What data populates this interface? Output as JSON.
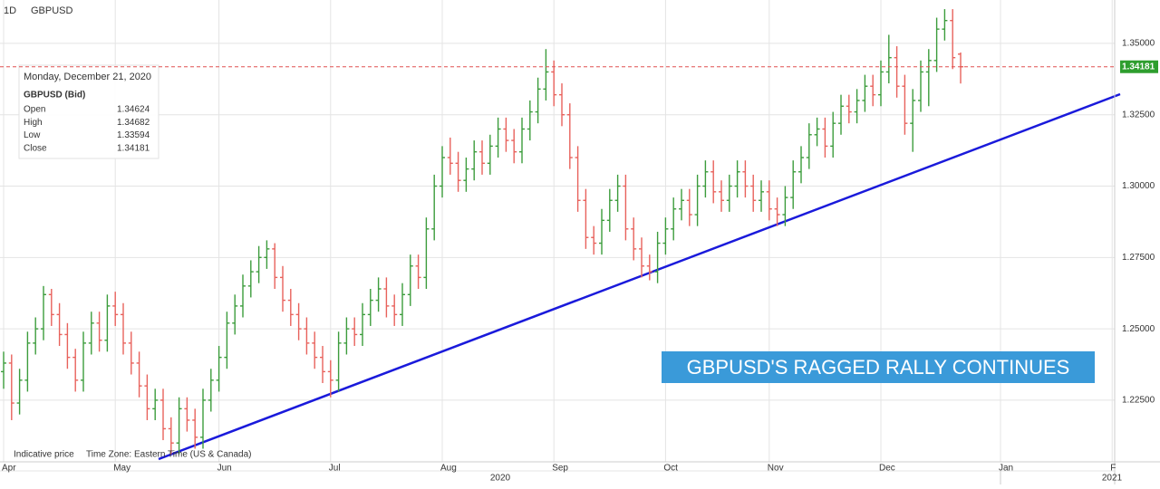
{
  "header": {
    "interval": "1D",
    "symbol": "GBPUSD"
  },
  "footer": {
    "note": "Indicative price",
    "timezone": "Time Zone: Eastern Time (US & Canada)"
  },
  "tooltip": {
    "date": "Monday, December 21, 2020",
    "symbol": "GBPUSD (Bid)",
    "rows": [
      [
        "Open",
        1.34624
      ],
      [
        "High",
        1.34682
      ],
      [
        "Low",
        1.33594
      ],
      [
        "Close",
        1.34181
      ]
    ]
  },
  "chart_data": {
    "type": "ohlc",
    "annotation": "GBPUSD'S RAGGED RALLY CONTINUES",
    "last_label": "1.34181",
    "up_color": "#3c9c3c",
    "down_color": "#e8625c",
    "grid": true,
    "ylim": [
      1.2034,
      1.3652
    ],
    "yticks": [
      {
        "value": 1.225,
        "label": "1.22500"
      },
      {
        "value": 1.25,
        "label": "1.25000"
      },
      {
        "value": 1.275,
        "label": "1.27500"
      },
      {
        "value": 1.3,
        "label": "1.30000"
      },
      {
        "value": 1.325,
        "label": "1.32500"
      },
      {
        "value": 1.35,
        "label": "1.35000"
      }
    ],
    "xticks": [
      {
        "value": 0,
        "label": "Apr"
      },
      {
        "value": 14,
        "label": "May"
      },
      {
        "value": 27,
        "label": "Jun"
      },
      {
        "value": 41,
        "label": "Jul"
      },
      {
        "value": 55,
        "label": "Aug"
      },
      {
        "value": 69,
        "label": "Sep"
      },
      {
        "value": 83,
        "label": "Oct"
      },
      {
        "value": 96,
        "label": "Nov"
      },
      {
        "value": 110,
        "label": "Dec"
      },
      {
        "value": 125,
        "label": "Jan"
      },
      {
        "value": 139,
        "label": "F"
      }
    ],
    "years": [
      "2020",
      "2021"
    ],
    "bars": [
      [
        1.235,
        1.242,
        1.229,
        1.238
      ],
      [
        1.238,
        1.241,
        1.218,
        1.224
      ],
      [
        1.224,
        1.236,
        1.22,
        1.232
      ],
      [
        1.232,
        1.249,
        1.228,
        1.245
      ],
      [
        1.245,
        1.254,
        1.241,
        1.25
      ],
      [
        1.25,
        1.265,
        1.246,
        1.262
      ],
      [
        1.262,
        1.264,
        1.251,
        1.255
      ],
      [
        1.255,
        1.259,
        1.244,
        1.248
      ],
      [
        1.248,
        1.252,
        1.236,
        1.24
      ],
      [
        1.24,
        1.243,
        1.228,
        1.232
      ],
      [
        1.232,
        1.249,
        1.228,
        1.245
      ],
      [
        1.245,
        1.256,
        1.241,
        1.252
      ],
      [
        1.252,
        1.256,
        1.242,
        1.246
      ],
      [
        1.246,
        1.262,
        1.242,
        1.258
      ],
      [
        1.258,
        1.263,
        1.251,
        1.255
      ],
      [
        1.255,
        1.259,
        1.241,
        1.245
      ],
      [
        1.245,
        1.249,
        1.234,
        1.238
      ],
      [
        1.238,
        1.242,
        1.226,
        1.23
      ],
      [
        1.23,
        1.234,
        1.218,
        1.222
      ],
      [
        1.222,
        1.229,
        1.218,
        1.225
      ],
      [
        1.225,
        1.229,
        1.211,
        1.215
      ],
      [
        1.215,
        1.219,
        1.206,
        1.21
      ],
      [
        1.21,
        1.226,
        1.206,
        1.222
      ],
      [
        1.222,
        1.226,
        1.214,
        1.218
      ],
      [
        1.218,
        1.222,
        1.208,
        1.212
      ],
      [
        1.212,
        1.229,
        1.208,
        1.225
      ],
      [
        1.225,
        1.236,
        1.221,
        1.232
      ],
      [
        1.232,
        1.244,
        1.228,
        1.24
      ],
      [
        1.24,
        1.256,
        1.236,
        1.252
      ],
      [
        1.252,
        1.262,
        1.248,
        1.258
      ],
      [
        1.258,
        1.269,
        1.254,
        1.265
      ],
      [
        1.265,
        1.274,
        1.261,
        1.27
      ],
      [
        1.27,
        1.279,
        1.266,
        1.275
      ],
      [
        1.275,
        1.281,
        1.271,
        1.278
      ],
      [
        1.278,
        1.28,
        1.264,
        1.268
      ],
      [
        1.268,
        1.272,
        1.256,
        1.26
      ],
      [
        1.26,
        1.264,
        1.251,
        1.255
      ],
      [
        1.255,
        1.259,
        1.246,
        1.25
      ],
      [
        1.25,
        1.254,
        1.241,
        1.245
      ],
      [
        1.245,
        1.249,
        1.236,
        1.24
      ],
      [
        1.24,
        1.244,
        1.231,
        1.235
      ],
      [
        1.235,
        1.239,
        1.226,
        1.232
      ],
      [
        1.232,
        1.249,
        1.228,
        1.245
      ],
      [
        1.245,
        1.254,
        1.241,
        1.25
      ],
      [
        1.25,
        1.254,
        1.244,
        1.248
      ],
      [
        1.248,
        1.259,
        1.244,
        1.255
      ],
      [
        1.255,
        1.264,
        1.251,
        1.26
      ],
      [
        1.26,
        1.268,
        1.256,
        1.264
      ],
      [
        1.264,
        1.268,
        1.254,
        1.258
      ],
      [
        1.258,
        1.262,
        1.251,
        1.255
      ],
      [
        1.255,
        1.266,
        1.251,
        1.262
      ],
      [
        1.262,
        1.276,
        1.258,
        1.272
      ],
      [
        1.272,
        1.276,
        1.264,
        1.268
      ],
      [
        1.268,
        1.289,
        1.264,
        1.285
      ],
      [
        1.285,
        1.304,
        1.281,
        1.3
      ],
      [
        1.3,
        1.314,
        1.296,
        1.31
      ],
      [
        1.31,
        1.317,
        1.304,
        1.308
      ],
      [
        1.308,
        1.312,
        1.298,
        1.302
      ],
      [
        1.302,
        1.31,
        1.298,
        1.306
      ],
      [
        1.306,
        1.316,
        1.302,
        1.312
      ],
      [
        1.312,
        1.316,
        1.304,
        1.308
      ],
      [
        1.308,
        1.318,
        1.304,
        1.314
      ],
      [
        1.314,
        1.324,
        1.31,
        1.32
      ],
      [
        1.32,
        1.324,
        1.312,
        1.316
      ],
      [
        1.316,
        1.32,
        1.308,
        1.312
      ],
      [
        1.312,
        1.324,
        1.308,
        1.32
      ],
      [
        1.32,
        1.33,
        1.316,
        1.326
      ],
      [
        1.326,
        1.338,
        1.322,
        1.334
      ],
      [
        1.334,
        1.348,
        1.33,
        1.34
      ],
      [
        1.34,
        1.344,
        1.328,
        1.332
      ],
      [
        1.332,
        1.336,
        1.321,
        1.325
      ],
      [
        1.325,
        1.329,
        1.306,
        1.31
      ],
      [
        1.31,
        1.314,
        1.291,
        1.295
      ],
      [
        1.295,
        1.299,
        1.278,
        1.282
      ],
      [
        1.282,
        1.286,
        1.276,
        1.28
      ],
      [
        1.28,
        1.292,
        1.276,
        1.288
      ],
      [
        1.288,
        1.299,
        1.284,
        1.295
      ],
      [
        1.295,
        1.304,
        1.291,
        1.3
      ],
      [
        1.3,
        1.304,
        1.281,
        1.285
      ],
      [
        1.285,
        1.289,
        1.274,
        1.278
      ],
      [
        1.278,
        1.282,
        1.268,
        1.272
      ],
      [
        1.272,
        1.276,
        1.267,
        1.27
      ],
      [
        1.27,
        1.284,
        1.266,
        1.28
      ],
      [
        1.28,
        1.289,
        1.276,
        1.285
      ],
      [
        1.285,
        1.296,
        1.281,
        1.292
      ],
      [
        1.292,
        1.299,
        1.288,
        1.295
      ],
      [
        1.295,
        1.299,
        1.286,
        1.29
      ],
      [
        1.29,
        1.304,
        1.286,
        1.3
      ],
      [
        1.3,
        1.309,
        1.296,
        1.305
      ],
      [
        1.305,
        1.309,
        1.294,
        1.298
      ],
      [
        1.298,
        1.302,
        1.291,
        1.295
      ],
      [
        1.295,
        1.304,
        1.291,
        1.3
      ],
      [
        1.3,
        1.309,
        1.296,
        1.305
      ],
      [
        1.305,
        1.309,
        1.296,
        1.3
      ],
      [
        1.3,
        1.304,
        1.291,
        1.295
      ],
      [
        1.295,
        1.302,
        1.291,
        1.298
      ],
      [
        1.298,
        1.302,
        1.288,
        1.292
      ],
      [
        1.292,
        1.296,
        1.286,
        1.29
      ],
      [
        1.29,
        1.3,
        1.286,
        1.296
      ],
      [
        1.296,
        1.309,
        1.292,
        1.305
      ],
      [
        1.305,
        1.314,
        1.301,
        1.31
      ],
      [
        1.31,
        1.322,
        1.306,
        1.318
      ],
      [
        1.318,
        1.324,
        1.314,
        1.32
      ],
      [
        1.32,
        1.324,
        1.31,
        1.314
      ],
      [
        1.314,
        1.326,
        1.31,
        1.322
      ],
      [
        1.322,
        1.332,
        1.318,
        1.328
      ],
      [
        1.328,
        1.332,
        1.322,
        1.326
      ],
      [
        1.326,
        1.334,
        1.322,
        1.33
      ],
      [
        1.33,
        1.339,
        1.326,
        1.335
      ],
      [
        1.335,
        1.339,
        1.328,
        1.332
      ],
      [
        1.332,
        1.344,
        1.328,
        1.34
      ],
      [
        1.34,
        1.353,
        1.336,
        1.345
      ],
      [
        1.345,
        1.349,
        1.331,
        1.335
      ],
      [
        1.335,
        1.339,
        1.318,
        1.322
      ],
      [
        1.322,
        1.334,
        1.312,
        1.33
      ],
      [
        1.33,
        1.344,
        1.326,
        1.34
      ],
      [
        1.34,
        1.348,
        1.328,
        1.344
      ],
      [
        1.344,
        1.359,
        1.34,
        1.355
      ],
      [
        1.355,
        1.362,
        1.351,
        1.358
      ],
      [
        1.358,
        1.362,
        1.341,
        1.345
      ],
      [
        1.34624,
        1.34682,
        1.33594,
        1.34181
      ]
    ]
  }
}
